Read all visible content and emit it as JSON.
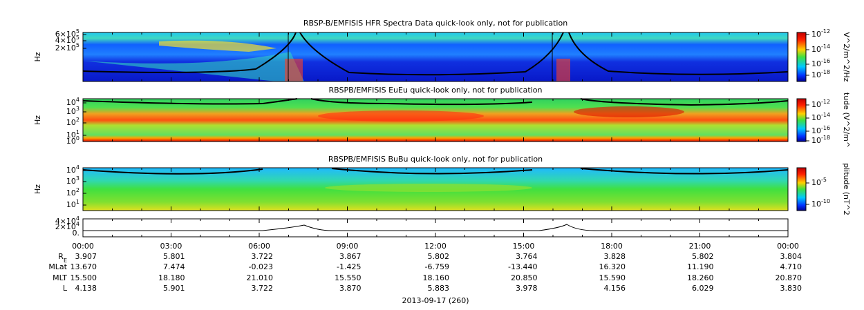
{
  "panels": [
    {
      "title": "RBSP-B/EMFISIS  HFR Spectra Data quick-look only, not for publication",
      "ylabel": "Hz",
      "yticks": [
        {
          "base": "6×10",
          "exp": "5"
        },
        {
          "base": "4×10",
          "exp": "5"
        },
        {
          "base": "2×10",
          "exp": "5"
        }
      ],
      "colorbar_label": "V^2/m^2/Hz",
      "colorbar_ticks": [
        {
          "base": "10",
          "exp": "-12"
        },
        {
          "base": "10",
          "exp": "-14"
        },
        {
          "base": "10",
          "exp": "-16"
        },
        {
          "base": "10",
          "exp": "-18"
        }
      ]
    },
    {
      "title": "RBSPB/EMFISIS  EuEu quick-look only, not for publication",
      "ylabel": "Hz",
      "yticks": [
        {
          "base": "10",
          "exp": "4"
        },
        {
          "base": "10",
          "exp": "3"
        },
        {
          "base": "10",
          "exp": "2"
        },
        {
          "base": "10",
          "exp": "1"
        },
        {
          "base": "10",
          "exp": "0"
        }
      ],
      "colorbar_label": "tude (V^2/m^",
      "colorbar_ticks": [
        {
          "base": "10",
          "exp": "-12"
        },
        {
          "base": "10",
          "exp": "-14"
        },
        {
          "base": "10",
          "exp": "-16"
        },
        {
          "base": "10",
          "exp": "-18"
        }
      ]
    },
    {
      "title": "RBSPB/EMFISIS  BuBu quick-look only, not for publication",
      "ylabel": "Hz",
      "yticks": [
        {
          "base": "10",
          "exp": "4"
        },
        {
          "base": "10",
          "exp": "3"
        },
        {
          "base": "10",
          "exp": "2"
        },
        {
          "base": "10",
          "exp": "1"
        }
      ],
      "colorbar_label": "plitude (nT^2",
      "colorbar_ticks": [
        {
          "base": "10",
          "exp": "-5"
        },
        {
          "base": "10",
          "exp": "-10"
        }
      ]
    }
  ],
  "orbit_panel": {
    "yticks": [
      {
        "base": "4×10",
        "exp": "4"
      },
      {
        "base": "2×10",
        "exp": "4"
      },
      {
        "base": "0.",
        "exp": ""
      }
    ]
  },
  "x_axis": {
    "ticks": [
      "00:00",
      "03:00",
      "06:00",
      "09:00",
      "12:00",
      "15:00",
      "18:00",
      "21:00",
      "00:00"
    ],
    "date": "2013-09-17 (260)"
  },
  "ephemeris": [
    {
      "label": {
        "base": "R",
        "sub": "E"
      },
      "values": [
        "3.907",
        "5.801",
        "3.722",
        "3.867",
        "5.802",
        "3.764",
        "3.828",
        "5.802",
        "3.804"
      ]
    },
    {
      "label": {
        "base": "MLat",
        "sub": ""
      },
      "values": [
        "13.670",
        "7.474",
        "-0.023",
        "-1.425",
        "-6.759",
        "-13.440",
        "16.320",
        "11.190",
        "4.710"
      ]
    },
    {
      "label": {
        "base": "MLT",
        "sub": ""
      },
      "values": [
        "15.500",
        "18.180",
        "21.010",
        "15.550",
        "18.160",
        "20.850",
        "15.590",
        "18.260",
        "20.870"
      ]
    },
    {
      "label": {
        "base": "L",
        "sub": ""
      },
      "values": [
        "4.138",
        "5.901",
        "3.722",
        "3.870",
        "5.883",
        "3.978",
        "4.156",
        "6.029",
        "3.830"
      ]
    }
  ]
}
